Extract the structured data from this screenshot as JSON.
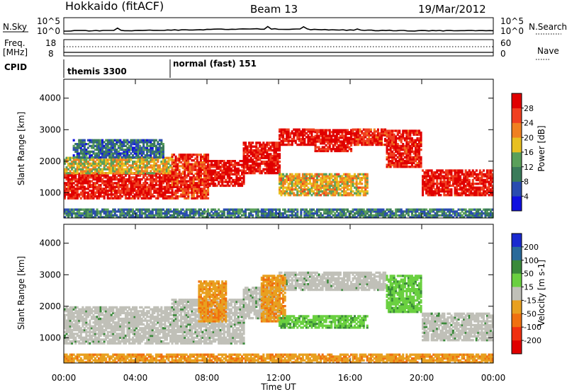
{
  "header": {
    "station": "Hokkaido (fitACF)",
    "beam": "Beam 13",
    "date": "19/Mar/2012"
  },
  "noise_panel": {
    "left_label": "N.Sky",
    "right_label": "N.Search",
    "left_ticks": [
      "10^5",
      "10^0"
    ],
    "right_ticks": [
      "10^5",
      "10^0"
    ]
  },
  "freq_panel": {
    "left_label_1": "Freq.",
    "left_label_2": "[MHz]",
    "left_ticks": [
      "18",
      "8"
    ],
    "right_label": "Nave",
    "right_ticks": [
      "60",
      "0"
    ]
  },
  "cpid": {
    "label": "CPID",
    "segments": [
      {
        "name": "themis 3300",
        "start_h": 0,
        "end_h": 6
      },
      {
        "name": "normal (fast) 151",
        "start_h": 6,
        "end_h": 24
      }
    ]
  },
  "x_axis": {
    "label": "Time UT",
    "ticks": [
      "00:00",
      "04:00",
      "08:00",
      "12:00",
      "16:00",
      "20:00",
      "00:00"
    ],
    "range_h": [
      0,
      24
    ]
  },
  "chart_data": [
    {
      "type": "heatmap",
      "name": "power",
      "xlabel": "Time UT",
      "ylabel": "Slant Range [km]",
      "yticks": [
        "1000",
        "2000",
        "3000",
        "4000"
      ],
      "ylim": [
        200,
        4600
      ],
      "colorbar_label": "Power [dB]",
      "colorbar_ticks": [
        "4",
        "8",
        "12",
        "16",
        "20",
        "24",
        "28"
      ],
      "colors": [
        "#1010e0",
        "#2a4cb0",
        "#3a7b5a",
        "#5aa05a",
        "#e8c020",
        "#f08020",
        "#f04020",
        "#e00000"
      ],
      "echo_regions": [
        {
          "t0": 0.0,
          "t1": 6.0,
          "r0": 800,
          "r1": 1600,
          "level": 0.92
        },
        {
          "t0": 0.0,
          "t1": 6.0,
          "r0": 1600,
          "r1": 2100,
          "level": 0.55
        },
        {
          "t0": 0.5,
          "t1": 5.5,
          "r0": 2100,
          "r1": 2700,
          "level": 0.25
        },
        {
          "t0": 6.0,
          "t1": 8.0,
          "r0": 800,
          "r1": 2200,
          "level": 0.85
        },
        {
          "t0": 8.0,
          "t1": 10.0,
          "r0": 1200,
          "r1": 2000,
          "level": 0.95
        },
        {
          "t0": 10.0,
          "t1": 12.0,
          "r0": 1600,
          "r1": 2600,
          "level": 0.95
        },
        {
          "t0": 12.0,
          "t1": 14.0,
          "r0": 2500,
          "r1": 3000,
          "level": 0.95
        },
        {
          "t0": 14.0,
          "t1": 16.0,
          "r0": 2300,
          "r1": 3000,
          "level": 0.95
        },
        {
          "t0": 16.0,
          "t1": 18.0,
          "r0": 2500,
          "r1": 3000,
          "level": 0.9
        },
        {
          "t0": 18.0,
          "t1": 20.0,
          "r0": 1800,
          "r1": 3000,
          "level": 0.9
        },
        {
          "t0": 20.0,
          "t1": 24.0,
          "r0": 900,
          "r1": 1700,
          "level": 0.92
        },
        {
          "t0": 12.0,
          "t1": 17.0,
          "r0": 900,
          "r1": 1600,
          "level": 0.6
        },
        {
          "t0": 0.0,
          "t1": 24.0,
          "r0": 200,
          "r1": 500,
          "level": 0.3
        }
      ]
    },
    {
      "type": "heatmap",
      "name": "velocity",
      "xlabel": "Time UT",
      "ylabel": "Slant Range [km]",
      "yticks": [
        "1000",
        "2000",
        "3000",
        "4000"
      ],
      "ylim": [
        200,
        4600
      ],
      "colorbar_label": "Velocity [m s-1]",
      "colorbar_ticks": [
        "200",
        "100",
        "50",
        "15",
        "-15",
        "-50",
        "-100",
        "-200"
      ],
      "colors": [
        "#1a2ad0",
        "#2a6a9a",
        "#3a8a3a",
        "#6ad040",
        "#c0c0b8",
        "#e8a020",
        "#f07010",
        "#f03010",
        "#e00000"
      ],
      "echo_regions": [
        {
          "t0": 0.0,
          "t1": 6.0,
          "r0": 800,
          "r1": 2000,
          "value": 0
        },
        {
          "t0": 6.0,
          "t1": 10.0,
          "r0": 800,
          "r1": 2200,
          "value": 0
        },
        {
          "t0": 10.0,
          "t1": 12.0,
          "r0": 1600,
          "r1": 2600,
          "value": 0
        },
        {
          "t0": 12.0,
          "t1": 18.0,
          "r0": 2500,
          "r1": 3100,
          "value": 0
        },
        {
          "t0": 18.0,
          "t1": 20.0,
          "r0": 1800,
          "r1": 3000,
          "value": 60
        },
        {
          "t0": 20.0,
          "t1": 24.0,
          "r0": 900,
          "r1": 1800,
          "value": 0
        },
        {
          "t0": 11.0,
          "t1": 12.3,
          "r0": 1500,
          "r1": 3000,
          "value": -60
        },
        {
          "t0": 7.5,
          "t1": 9.0,
          "r0": 1500,
          "r1": 2800,
          "value": -60
        },
        {
          "t0": 12.0,
          "t1": 17.0,
          "r0": 1300,
          "r1": 1700,
          "value": 60
        },
        {
          "t0": 0.0,
          "t1": 24.0,
          "r0": 200,
          "r1": 500,
          "value": -60
        }
      ]
    }
  ]
}
